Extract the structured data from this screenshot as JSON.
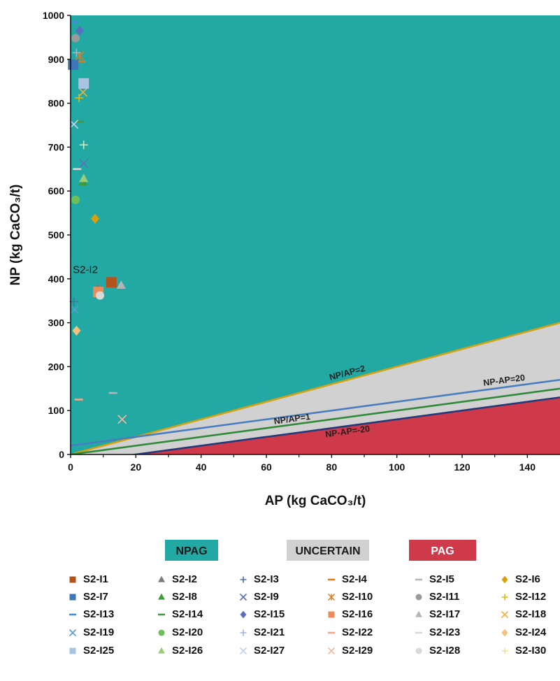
{
  "chart_data": {
    "type": "scatter",
    "xlabel": "AP (kg CaCO₃/t)",
    "ylabel": "NP (kg CaCO₃/t)",
    "xlim": [
      0,
      150
    ],
    "ylim": [
      0,
      1000
    ],
    "x_ticks": [
      0,
      20,
      40,
      60,
      80,
      100,
      120,
      140
    ],
    "y_ticks": [
      0,
      100,
      200,
      300,
      400,
      500,
      600,
      700,
      800,
      900,
      1000
    ],
    "grid": false,
    "zones": [
      {
        "name": "NPAG",
        "color": "#22a9a3",
        "text_color": "#1a1a1a"
      },
      {
        "name": "UNCERTAIN",
        "color": "#d1d1d1",
        "text_color": "#1a1a1a"
      },
      {
        "name": "PAG",
        "color": "#cf3a4a",
        "text_color": "#ffffff"
      }
    ],
    "criterion_lines": [
      {
        "label": "NP/AP=2",
        "color": "#d4a20e",
        "slope": 2,
        "intercept": 0
      },
      {
        "label": "NP-AP=20",
        "color": "#4a7dbf",
        "slope": 1,
        "intercept": 20
      },
      {
        "label": "NP/AP=1",
        "color": "#2f8a3a",
        "slope": 1,
        "intercept": 0
      },
      {
        "label": "NP-AP=-20",
        "color": "#243a78",
        "slope": 1,
        "intercept": -20
      }
    ],
    "annotations": [
      {
        "text": "S2-I2",
        "x": 4.5,
        "y": 413
      }
    ],
    "series": [
      {
        "name": "S2-I1",
        "marker": "square",
        "color": "#b5531c",
        "x": [
          12.5
        ],
        "y": [
          392
        ]
      },
      {
        "name": "S2-I2",
        "marker": "triangle",
        "color": "#7a7a7a",
        "x": [
          8.5
        ],
        "y": [
          378
        ]
      },
      {
        "name": "S2-I3",
        "marker": "plus",
        "color": "#4a6fa5",
        "x": [
          1.0
        ],
        "y": [
          348
        ]
      },
      {
        "name": "S2-I4",
        "marker": "dash",
        "color": "#e07a1f",
        "x": [
          3.2
        ],
        "y": [
          895
        ]
      },
      {
        "name": "S2-I5",
        "marker": "dash",
        "color": "#b5b5b5",
        "x": [
          13.0
        ],
        "y": [
          140
        ]
      },
      {
        "name": "S2-I6",
        "marker": "diamond",
        "color": "#d9a00b",
        "x": [
          7.5
        ],
        "y": [
          537
        ]
      },
      {
        "name": "S2-I7",
        "marker": "square",
        "color": "#3f76b8",
        "x": [
          0.8
        ],
        "y": [
          888
        ]
      },
      {
        "name": "S2-I8",
        "marker": "triangle",
        "color": "#3e9a3e",
        "x": [
          3.8
        ],
        "y": [
          620
        ]
      },
      {
        "name": "S2-I9",
        "marker": "x",
        "color": "#5a6fc0",
        "x": [
          4.0
        ],
        "y": [
          663
        ]
      },
      {
        "name": "S2-I10",
        "marker": "asterisk",
        "color": "#e07a1f",
        "x": [
          2.8
        ],
        "y": [
          908
        ]
      },
      {
        "name": "S2-I11",
        "marker": "circle",
        "color": "#9a9a9a",
        "x": [
          1.5
        ],
        "y": [
          948
        ]
      },
      {
        "name": "S2-I12",
        "marker": "plus",
        "color": "#e6b800",
        "x": [
          2.6
        ],
        "y": [
          812
        ]
      },
      {
        "name": "S2-I13",
        "marker": "dash",
        "color": "#3f8fd0",
        "x": [
          1.2
        ],
        "y": [
          985
        ]
      },
      {
        "name": "S2-I14",
        "marker": "dash",
        "color": "#3e9a3e",
        "x": [
          2.8
        ],
        "y": [
          758
        ]
      },
      {
        "name": "S2-I15",
        "marker": "diamond",
        "color": "#5a6fc0",
        "x": [
          2.8
        ],
        "y": [
          965
        ]
      },
      {
        "name": "S2-I16",
        "marker": "square",
        "color": "#ef8a5a",
        "x": [
          8.5
        ],
        "y": [
          370
        ]
      },
      {
        "name": "S2-I17",
        "marker": "triangle",
        "color": "#b5b5b5",
        "x": [
          15.5
        ],
        "y": [
          385
        ]
      },
      {
        "name": "S2-I18",
        "marker": "x",
        "color": "#f0b040",
        "x": [
          3.8
        ],
        "y": [
          825
        ]
      },
      {
        "name": "S2-I19",
        "marker": "x",
        "color": "#5b9bd5",
        "x": [
          1.2
        ],
        "y": [
          330
        ]
      },
      {
        "name": "S2-I20",
        "marker": "circle",
        "color": "#6dbf5a",
        "x": [
          1.5
        ],
        "y": [
          580
        ]
      },
      {
        "name": "S2-I21",
        "marker": "plus",
        "color": "#9fb4e0",
        "x": [
          1.8
        ],
        "y": [
          915
        ]
      },
      {
        "name": "S2-I22",
        "marker": "dash",
        "color": "#f4a68a",
        "x": [
          2.5
        ],
        "y": [
          125
        ]
      },
      {
        "name": "S2-I23",
        "marker": "dash",
        "color": "#d8d8d8",
        "x": [
          2.0
        ],
        "y": [
          650
        ]
      },
      {
        "name": "S2-I24",
        "marker": "diamond",
        "color": "#f5c07a",
        "x": [
          1.8
        ],
        "y": [
          282
        ]
      },
      {
        "name": "S2-I25",
        "marker": "square",
        "color": "#a9c3e3",
        "x": [
          4.0
        ],
        "y": [
          845
        ]
      },
      {
        "name": "S2-I26",
        "marker": "triangle",
        "color": "#9ccc7a",
        "x": [
          4.0
        ],
        "y": [
          628
        ]
      },
      {
        "name": "S2-I27",
        "marker": "x",
        "color": "#c5d3ec",
        "x": [
          1.0
        ],
        "y": [
          752
        ]
      },
      {
        "name": "S2-I29",
        "marker": "x",
        "color": "#f7b8a0",
        "x": [
          15.8
        ],
        "y": [
          80
        ]
      },
      {
        "name": "S2-I28",
        "marker": "circle",
        "color": "#d9d9d9",
        "x": [
          9.0
        ],
        "y": [
          362
        ]
      },
      {
        "name": "S2-I30",
        "marker": "plus",
        "color": "#f8dfa0",
        "x": [
          4.0
        ],
        "y": [
          705
        ]
      }
    ]
  }
}
